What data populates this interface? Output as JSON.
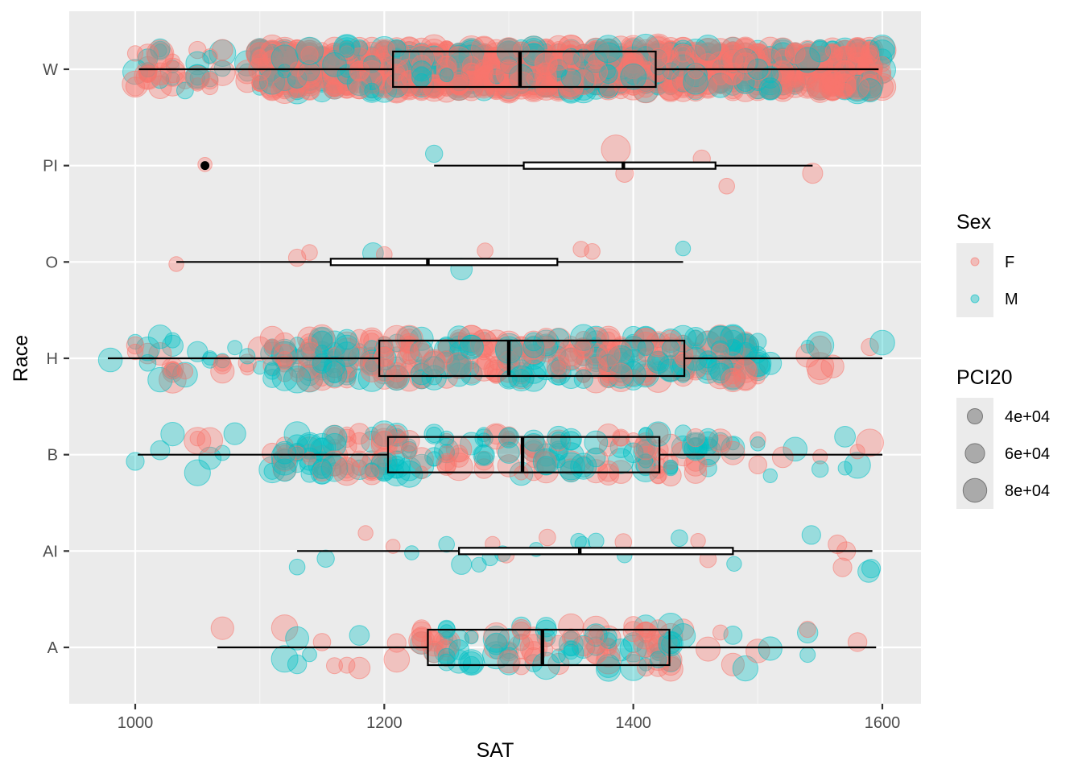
{
  "chart_data": {
    "type": "boxplot-jitter",
    "xlabel": "SAT",
    "ylabel": "Race",
    "xlim": [
      950,
      1620
    ],
    "x_ticks": [
      1000,
      1200,
      1400,
      1600
    ],
    "x_tick_labels": [
      "1000",
      "1200",
      "1400",
      "1600"
    ],
    "categories": [
      "A",
      "AI",
      "B",
      "H",
      "O",
      "PI",
      "W"
    ],
    "boxes": [
      {
        "category": "A",
        "whisker_low": 1066,
        "q1": 1235,
        "median": 1327,
        "q3": 1429,
        "whisker_high": 1595,
        "outliers": []
      },
      {
        "category": "AI",
        "whisker_low": 1130,
        "q1": 1260,
        "median": 1357,
        "q3": 1480,
        "whisker_high": 1592,
        "outliers": []
      },
      {
        "category": "B",
        "whisker_low": 1002,
        "q1": 1203,
        "median": 1311,
        "q3": 1421,
        "whisker_high": 1600,
        "outliers": []
      },
      {
        "category": "H",
        "whisker_low": 978,
        "q1": 1196,
        "median": 1300,
        "q3": 1441,
        "whisker_high": 1600,
        "outliers": []
      },
      {
        "category": "O",
        "whisker_low": 1033,
        "q1": 1157,
        "median": 1235,
        "q3": 1339,
        "whisker_high": 1440,
        "outliers": []
      },
      {
        "category": "PI",
        "whisker_low": 1240,
        "q1": 1312,
        "median": 1392,
        "q3": 1466,
        "whisker_high": 1544,
        "outliers": [
          1056
        ]
      },
      {
        "category": "W",
        "whisker_low": 1003,
        "q1": 1207,
        "median": 1309,
        "q3": 1418,
        "whisker_high": 1597,
        "outliers": []
      }
    ],
    "points": {
      "PI": [
        {
          "sat": 1056,
          "sex": "F",
          "pci": 40000
        },
        {
          "sat": 1240,
          "sex": "M",
          "pci": 50000
        },
        {
          "sat": 1386,
          "sex": "F",
          "pci": 90000
        },
        {
          "sat": 1393,
          "sex": "F",
          "pci": 52000
        },
        {
          "sat": 1455,
          "sex": "F",
          "pci": 50000
        },
        {
          "sat": 1475,
          "sex": "F",
          "pci": 45000
        },
        {
          "sat": 1544,
          "sex": "F",
          "pci": 60000
        }
      ],
      "O": [
        {
          "sat": 1033,
          "sex": "F",
          "pci": 42000
        },
        {
          "sat": 1130,
          "sex": "F",
          "pci": 50000
        },
        {
          "sat": 1140,
          "sex": "F",
          "pci": 45000
        },
        {
          "sat": 1191,
          "sex": "M",
          "pci": 62000
        },
        {
          "sat": 1200,
          "sex": "F",
          "pci": 45000
        },
        {
          "sat": 1262,
          "sex": "M",
          "pci": 65000
        },
        {
          "sat": 1281,
          "sex": "F",
          "pci": 45000
        },
        {
          "sat": 1358,
          "sex": "F",
          "pci": 45000
        },
        {
          "sat": 1367,
          "sex": "F",
          "pci": 45000
        },
        {
          "sat": 1440,
          "sex": "M",
          "pci": 42000
        }
      ],
      "AI": [
        {
          "sat": 1130,
          "sex": "M",
          "pci": 45000
        },
        {
          "sat": 1153,
          "sex": "M",
          "pci": 50000
        },
        {
          "sat": 1185,
          "sex": "F",
          "pci": 42000
        },
        {
          "sat": 1207,
          "sex": "F",
          "pci": 40000
        },
        {
          "sat": 1222,
          "sex": "M",
          "pci": 40000
        },
        {
          "sat": 1250,
          "sex": "M",
          "pci": 45000
        },
        {
          "sat": 1262,
          "sex": "M",
          "pci": 60000
        },
        {
          "sat": 1276,
          "sex": "M",
          "pci": 42000
        },
        {
          "sat": 1285,
          "sex": "M",
          "pci": 45000
        },
        {
          "sat": 1287,
          "sex": "F",
          "pci": 42000
        },
        {
          "sat": 1295,
          "sex": "M",
          "pci": 45000
        },
        {
          "sat": 1298,
          "sex": "F",
          "pci": 45000
        },
        {
          "sat": 1322,
          "sex": "M",
          "pci": 40000
        },
        {
          "sat": 1331,
          "sex": "F",
          "pci": 48000
        },
        {
          "sat": 1356,
          "sex": "M",
          "pci": 45000
        },
        {
          "sat": 1359,
          "sex": "M",
          "pci": 42000
        },
        {
          "sat": 1370,
          "sex": "M",
          "pci": 45000
        },
        {
          "sat": 1392,
          "sex": "F",
          "pci": 48000
        },
        {
          "sat": 1393,
          "sex": "M",
          "pci": 42000
        },
        {
          "sat": 1437,
          "sex": "M",
          "pci": 48000
        },
        {
          "sat": 1452,
          "sex": "F",
          "pci": 42000
        },
        {
          "sat": 1460,
          "sex": "F",
          "pci": 48000
        },
        {
          "sat": 1481,
          "sex": "M",
          "pci": 42000
        },
        {
          "sat": 1543,
          "sex": "M",
          "pci": 55000
        },
        {
          "sat": 1564,
          "sex": "F",
          "pci": 55000
        },
        {
          "sat": 1568,
          "sex": "F",
          "pci": 55000
        },
        {
          "sat": 1571,
          "sex": "F",
          "pci": 55000
        },
        {
          "sat": 1589,
          "sex": "M",
          "pci": 65000
        },
        {
          "sat": 1591,
          "sex": "M",
          "pci": 55000
        }
      ],
      "Misc": []
    },
    "dense_groups": [
      {
        "category": "A",
        "n": 150,
        "f_ratio": 0.55,
        "min": 1062,
        "max": 1598,
        "bulk_low": 1225,
        "bulk_high": 1440
      },
      {
        "category": "B",
        "n": 260,
        "f_ratio": 0.5,
        "min": 1000,
        "max": 1600,
        "bulk_low": 1110,
        "bulk_high": 1470
      },
      {
        "category": "H",
        "n": 480,
        "f_ratio": 0.55,
        "min": 976,
        "max": 1600,
        "bulk_low": 1110,
        "bulk_high": 1500
      },
      {
        "category": "W",
        "n": 1600,
        "f_ratio": 0.72,
        "min": 1000,
        "max": 1600,
        "bulk_low": 1100,
        "bulk_high": 1600
      }
    ]
  },
  "legend": {
    "sex_title": "Sex",
    "sex_items": [
      {
        "label": "F",
        "color": "#F8766D"
      },
      {
        "label": "M",
        "color": "#00BFC4"
      }
    ],
    "size_title": "PCI20",
    "size_items": [
      {
        "label": "4e+04",
        "value": 40000
      },
      {
        "label": "6e+04",
        "value": 60000
      },
      {
        "label": "8e+04",
        "value": 80000
      }
    ]
  },
  "colors": {
    "panel_bg": "#EBEBEB",
    "grid_major": "#FFFFFF",
    "female": "#F8766D",
    "male": "#00BFC4",
    "box_line": "#000000"
  }
}
